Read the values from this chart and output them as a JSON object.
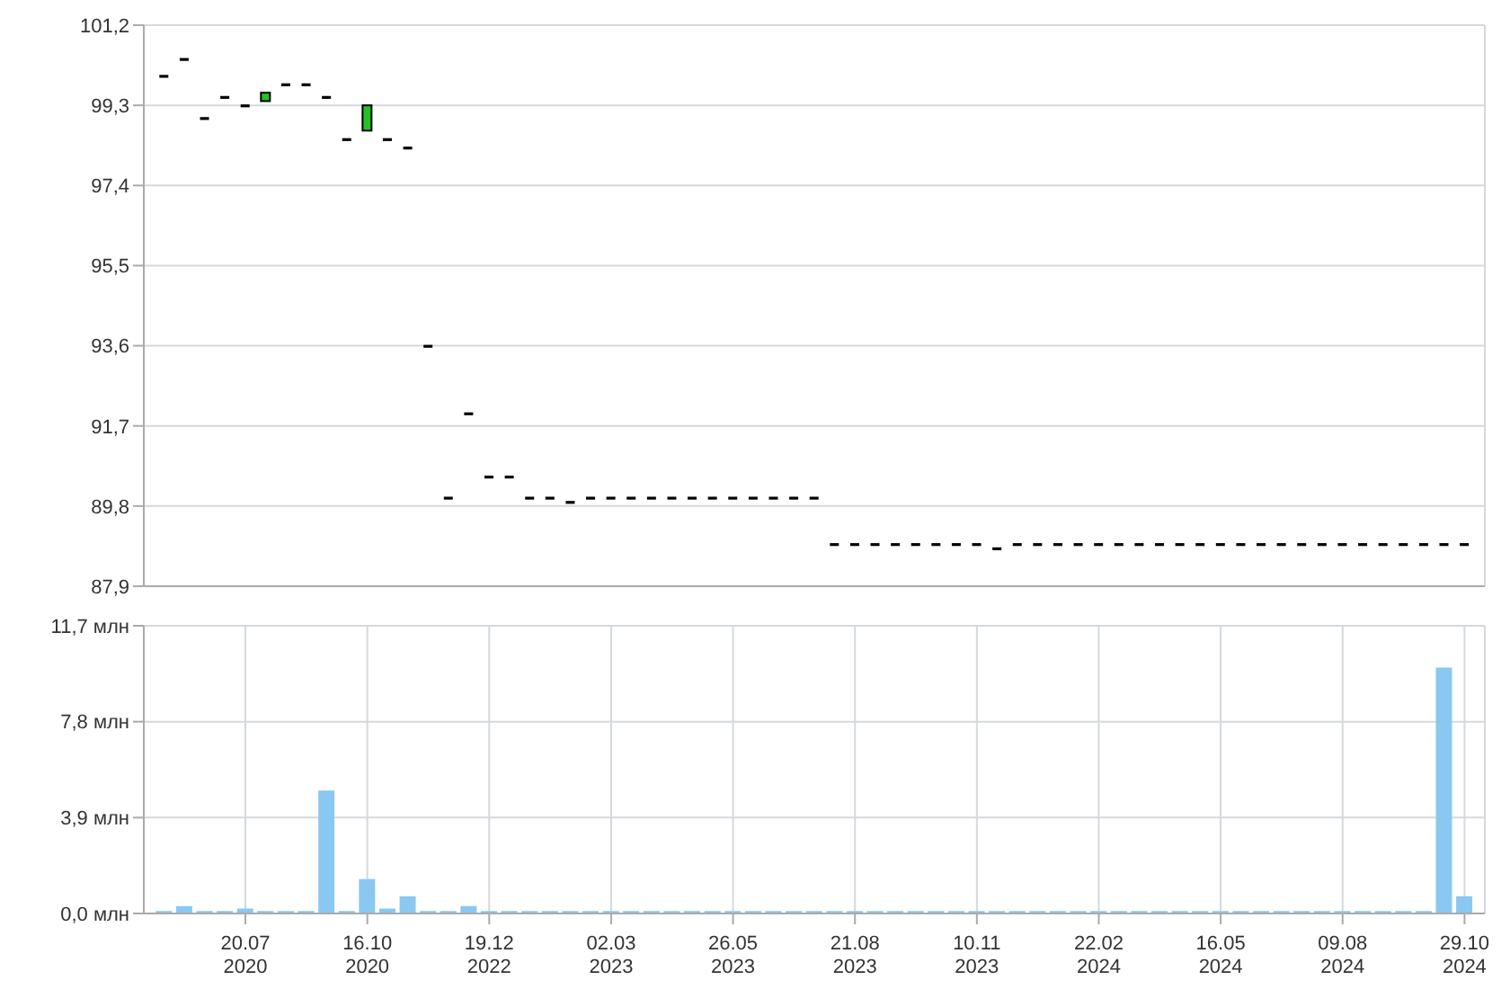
{
  "chart_data": [
    {
      "type": "candlestick",
      "categories": [
        null,
        null,
        null,
        null,
        null,
        null,
        null,
        null,
        null,
        null,
        null,
        null,
        null,
        null,
        null,
        null,
        null,
        null,
        null,
        null,
        null,
        null,
        null,
        null,
        null,
        null,
        null,
        null,
        null,
        null,
        null,
        null,
        null,
        null,
        null,
        null,
        null,
        null,
        null,
        null,
        null,
        null,
        null,
        null,
        null,
        null,
        null,
        null,
        null,
        null,
        null,
        null,
        null,
        null,
        null,
        null,
        null,
        null,
        null,
        null,
        null,
        null,
        null,
        null,
        null
      ],
      "ohlc": [
        [
          100.0,
          100.0,
          100.0,
          100.0
        ],
        [
          100.4,
          100.4,
          100.4,
          100.4
        ],
        [
          99.0,
          99.0,
          99.0,
          99.0
        ],
        [
          99.5,
          99.5,
          99.5,
          99.5
        ],
        [
          99.3,
          99.3,
          99.3,
          99.3
        ],
        [
          99.4,
          99.6,
          99.4,
          99.6
        ],
        [
          99.8,
          99.8,
          99.8,
          99.8
        ],
        [
          99.8,
          99.8,
          99.8,
          99.8
        ],
        [
          99.5,
          99.5,
          99.5,
          99.5
        ],
        [
          98.5,
          98.5,
          98.5,
          98.5
        ],
        [
          98.7,
          99.3,
          98.7,
          99.3
        ],
        [
          98.5,
          98.5,
          98.5,
          98.5
        ],
        [
          98.3,
          98.3,
          98.3,
          98.3
        ],
        [
          93.6,
          93.6,
          93.6,
          93.6
        ],
        [
          90.0,
          90.0,
          90.0,
          90.0
        ],
        [
          92.0,
          92.0,
          92.0,
          92.0
        ],
        [
          90.5,
          90.5,
          90.5,
          90.5
        ],
        [
          90.5,
          90.5,
          90.5,
          90.5
        ],
        [
          90.0,
          90.0,
          90.0,
          90.0
        ],
        [
          90.0,
          90.0,
          90.0,
          90.0
        ],
        [
          89.9,
          89.9,
          89.9,
          89.9
        ],
        [
          90.0,
          90.0,
          90.0,
          90.0
        ],
        [
          90.0,
          90.0,
          90.0,
          90.0
        ],
        [
          90.0,
          90.0,
          90.0,
          90.0
        ],
        [
          90.0,
          90.0,
          90.0,
          90.0
        ],
        [
          90.0,
          90.0,
          90.0,
          90.0
        ],
        [
          90.0,
          90.0,
          90.0,
          90.0
        ],
        [
          90.0,
          90.0,
          90.0,
          90.0
        ],
        [
          90.0,
          90.0,
          90.0,
          90.0
        ],
        [
          90.0,
          90.0,
          90.0,
          90.0
        ],
        [
          90.0,
          90.0,
          90.0,
          90.0
        ],
        [
          90.0,
          90.0,
          90.0,
          90.0
        ],
        [
          90.0,
          90.0,
          90.0,
          90.0
        ],
        [
          88.9,
          88.9,
          88.9,
          88.9
        ],
        [
          88.9,
          88.9,
          88.9,
          88.9
        ],
        [
          88.9,
          88.9,
          88.9,
          88.9
        ],
        [
          88.9,
          88.9,
          88.9,
          88.9
        ],
        [
          88.9,
          88.9,
          88.9,
          88.9
        ],
        [
          88.9,
          88.9,
          88.9,
          88.9
        ],
        [
          88.9,
          88.9,
          88.9,
          88.9
        ],
        [
          88.9,
          88.9,
          88.9,
          88.9
        ],
        [
          88.8,
          88.8,
          88.8,
          88.8
        ],
        [
          88.9,
          88.9,
          88.9,
          88.9
        ],
        [
          88.9,
          88.9,
          88.9,
          88.9
        ],
        [
          88.9,
          88.9,
          88.9,
          88.9
        ],
        [
          88.9,
          88.9,
          88.9,
          88.9
        ],
        [
          88.9,
          88.9,
          88.9,
          88.9
        ],
        [
          88.9,
          88.9,
          88.9,
          88.9
        ],
        [
          88.9,
          88.9,
          88.9,
          88.9
        ],
        [
          88.9,
          88.9,
          88.9,
          88.9
        ],
        [
          88.9,
          88.9,
          88.9,
          88.9
        ],
        [
          88.9,
          88.9,
          88.9,
          88.9
        ],
        [
          88.9,
          88.9,
          88.9,
          88.9
        ],
        [
          88.9,
          88.9,
          88.9,
          88.9
        ],
        [
          88.9,
          88.9,
          88.9,
          88.9
        ],
        [
          88.9,
          88.9,
          88.9,
          88.9
        ],
        [
          88.9,
          88.9,
          88.9,
          88.9
        ],
        [
          88.9,
          88.9,
          88.9,
          88.9
        ],
        [
          88.9,
          88.9,
          88.9,
          88.9
        ],
        [
          88.9,
          88.9,
          88.9,
          88.9
        ],
        [
          88.9,
          88.9,
          88.9,
          88.9
        ],
        [
          88.9,
          88.9,
          88.9,
          88.9
        ],
        [
          88.9,
          88.9,
          88.9,
          88.9
        ],
        [
          88.9,
          88.9,
          88.9,
          88.9
        ],
        [
          88.9,
          88.9,
          88.9,
          88.9
        ]
      ],
      "colors": [
        "#000000",
        "#000000",
        "#000000",
        "#000000",
        "#000000",
        "#22c322",
        "#000000",
        "#000000",
        "#000000",
        "#000000",
        "#22c322",
        "#000000",
        "#000000",
        "#000000",
        "#000000",
        "#000000",
        "#000000",
        "#000000",
        "#000000",
        "#000000",
        "#000000",
        "#000000",
        "#000000",
        "#000000",
        "#000000",
        "#000000",
        "#000000",
        "#000000",
        "#000000",
        "#000000",
        "#000000",
        "#000000",
        "#000000",
        "#000000",
        "#000000",
        "#000000",
        "#000000",
        "#000000",
        "#000000",
        "#000000",
        "#000000",
        "#000000",
        "#000000",
        "#000000",
        "#000000",
        "#000000",
        "#000000",
        "#000000",
        "#000000",
        "#000000",
        "#000000",
        "#000000",
        "#000000",
        "#000000",
        "#000000",
        "#000000",
        "#000000",
        "#000000",
        "#000000",
        "#000000",
        "#000000",
        "#000000",
        "#000000",
        "#000000",
        "#000000"
      ],
      "ylim": [
        87.9,
        101.2
      ],
      "yticks": [
        {
          "value": 87.9,
          "label": "87,9"
        },
        {
          "value": 89.8,
          "label": "89,8"
        },
        {
          "value": 91.7,
          "label": "91,7"
        },
        {
          "value": 93.6,
          "label": "93,6"
        },
        {
          "value": 95.5,
          "label": "95,5"
        },
        {
          "value": 97.4,
          "label": "97,4"
        },
        {
          "value": 99.3,
          "label": "99,3"
        },
        {
          "value": 101.2,
          "label": "101,2"
        }
      ],
      "grid": true,
      "tick_labels": "y"
    },
    {
      "type": "bar",
      "categories": [
        null,
        null,
        null,
        null,
        "20.07\n2020",
        null,
        null,
        null,
        null,
        null,
        "16.10\n2020",
        null,
        null,
        null,
        null,
        null,
        "19.12\n2022",
        null,
        null,
        null,
        null,
        null,
        "02.03\n2023",
        null,
        null,
        null,
        null,
        null,
        "26.05\n2023",
        null,
        null,
        null,
        null,
        null,
        "21.08\n2023",
        null,
        null,
        null,
        null,
        null,
        "10.11\n2023",
        null,
        null,
        null,
        null,
        null,
        "22.02\n2024",
        null,
        null,
        null,
        null,
        null,
        "16.05\n2024",
        null,
        null,
        null,
        null,
        null,
        "09.08\n2024",
        null,
        null,
        null,
        null,
        null,
        "29.10\n2024"
      ],
      "values": [
        0.1,
        0.3,
        0.1,
        0.1,
        0.2,
        0.1,
        0.1,
        0.1,
        5.0,
        0.1,
        1.4,
        0.2,
        0.7,
        0.1,
        0.1,
        0.3,
        0.1,
        0.1,
        0.1,
        0.1,
        0.1,
        0.1,
        0.1,
        0.1,
        0.1,
        0.1,
        0.1,
        0.1,
        0.1,
        0.1,
        0.1,
        0.1,
        0.1,
        0.1,
        0.1,
        0.1,
        0.1,
        0.1,
        0.1,
        0.1,
        0.1,
        0.1,
        0.1,
        0.1,
        0.1,
        0.1,
        0.1,
        0.1,
        0.1,
        0.1,
        0.1,
        0.1,
        0.1,
        0.1,
        0.1,
        0.1,
        0.1,
        0.1,
        0.1,
        0.1,
        0.1,
        0.1,
        0.1,
        10.0,
        0.7
      ],
      "color": "#8ac8f2",
      "ylim": [
        0,
        11.7
      ],
      "yticks": [
        {
          "value": 0,
          "label": "0,0 млн"
        },
        {
          "value": 3.9,
          "label": "3,9 млн"
        },
        {
          "value": 7.8,
          "label": "7,8 млн"
        },
        {
          "value": 11.7,
          "label": "11,7 млн"
        }
      ],
      "grid": true
    }
  ]
}
